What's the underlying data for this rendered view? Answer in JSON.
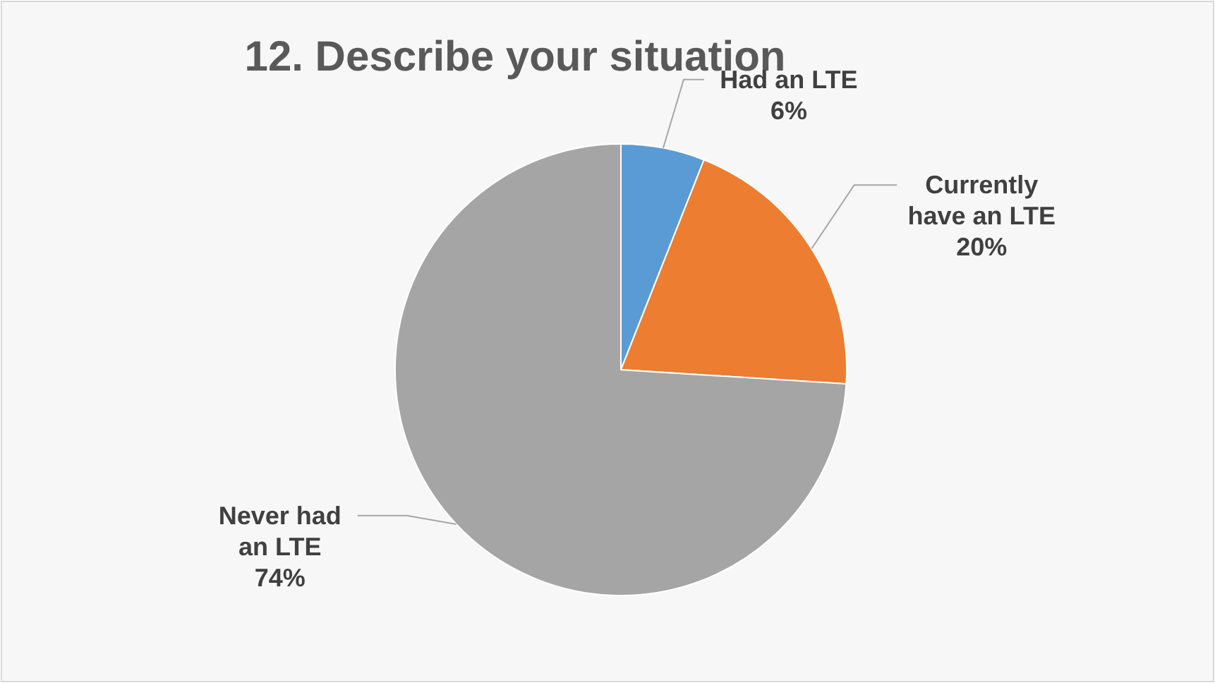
{
  "chart_data": {
    "type": "pie",
    "title": "12. Describe your situation",
    "categories": [
      "Had an LTE",
      "Currently have an LTE",
      "Never had an LTE"
    ],
    "values": [
      6,
      20,
      74
    ],
    "colors": [
      "#5b9bd5",
      "#ed7d31",
      "#a5a5a5"
    ],
    "value_labels": [
      "6%",
      "20%",
      "74%"
    ]
  }
}
